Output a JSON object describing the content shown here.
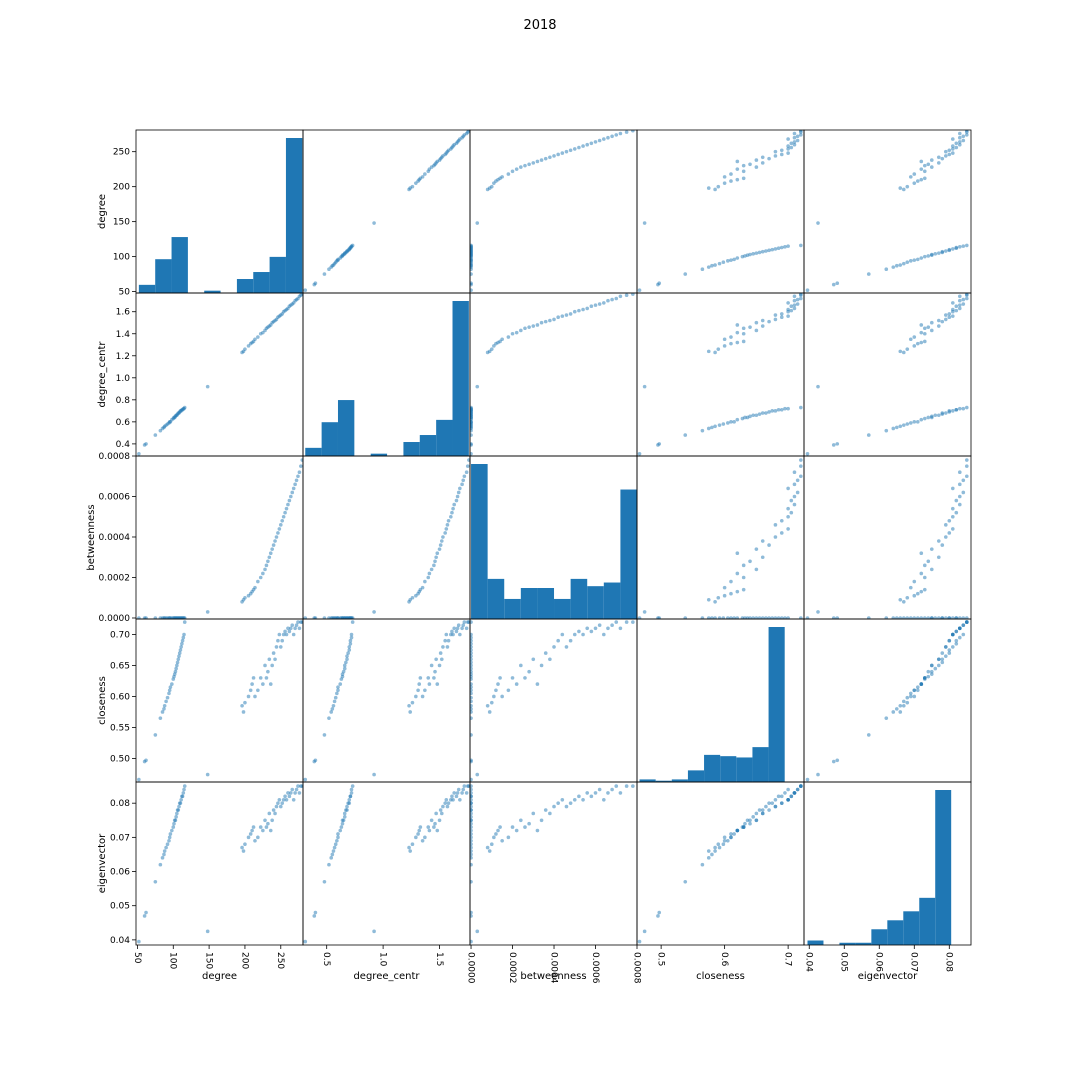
{
  "figure": {
    "title": "2018"
  },
  "chart_data": {
    "type": "scatter_matrix",
    "title": "2018",
    "variables": [
      "degree",
      "degree_centr",
      "betweenness",
      "closeness",
      "eigenvector"
    ],
    "ranges": {
      "degree": [
        48,
        281
      ],
      "degree_centr": [
        0.29,
        1.77
      ],
      "betweenness": [
        -5e-06,
        0.0008
      ],
      "closeness": [
        0.462,
        0.725
      ],
      "eigenvector": [
        0.0385,
        0.0862
      ]
    },
    "ticks": {
      "degree": [
        50,
        100,
        150,
        200,
        250
      ],
      "degree_centr": [
        0.4,
        0.6,
        0.8,
        1.0,
        1.2,
        1.4,
        1.6
      ],
      "betweenness": [
        0.0,
        0.0002,
        0.0004,
        0.0006,
        0.0008
      ],
      "closeness": [
        0.5,
        0.55,
        0.6,
        0.65,
        0.7
      ],
      "eigenvector": [
        0.04,
        0.05,
        0.06,
        0.07,
        0.08
      ]
    },
    "xtick_labels": {
      "degree": [
        "50",
        "100",
        "150",
        "200",
        "250"
      ],
      "degree_centr": [
        "0.5",
        "1.0",
        "1.5"
      ],
      "betweenness": [
        "0.0000",
        "0.0002",
        "0.0004",
        "0.0006",
        "0.0008"
      ],
      "closeness": [
        "0.5",
        "0.6",
        "0.7"
      ],
      "eigenvector": [
        "0.04",
        "0.05",
        "0.06",
        "0.07",
        "0.08"
      ]
    },
    "ytick_labels": {
      "degree": [
        "50",
        "100",
        "150",
        "200",
        "250"
      ],
      "degree_centr": [
        "0.4",
        "0.6",
        "0.8",
        "1.0",
        "1.2",
        "1.4",
        "1.6"
      ],
      "betweenness": [
        "0.0000",
        "0.0002",
        "0.0004",
        "0.0006",
        "0.0008"
      ],
      "closeness": [
        "0.50",
        "0.55",
        "0.60",
        "0.65",
        "0.70"
      ],
      "eigenvector": [
        "0.04",
        "0.05",
        "0.06",
        "0.07",
        "0.08"
      ]
    },
    "xtick_values": {
      "degree": [
        50,
        100,
        150,
        200,
        250
      ],
      "degree_centr": [
        0.5,
        1.0,
        1.5
      ],
      "betweenness": [
        0.0,
        0.0002,
        0.0004,
        0.0006,
        0.0008
      ],
      "closeness": [
        0.5,
        0.6,
        0.7
      ],
      "eigenvector": [
        0.04,
        0.05,
        0.06,
        0.07,
        0.08
      ]
    },
    "ytick_values": {
      "degree": [
        50,
        100,
        150,
        200,
        250
      ],
      "degree_centr": [
        0.4,
        0.6,
        0.8,
        1.0,
        1.2,
        1.4,
        1.6
      ],
      "betweenness": [
        0.0,
        0.0002,
        0.0004,
        0.0006,
        0.0008
      ],
      "closeness": [
        0.5,
        0.55,
        0.6,
        0.65,
        0.7
      ],
      "eigenvector": [
        0.04,
        0.05,
        0.06,
        0.07,
        0.08
      ]
    },
    "histograms": {
      "degree": {
        "bin_edges": [
          52,
          74.8,
          97.6,
          120.4,
          143.2,
          166,
          188.8,
          211.6,
          234.4,
          257.2,
          280
        ],
        "counts": [
          7,
          29,
          48,
          0,
          2,
          0,
          12,
          18,
          31,
          133
        ]
      },
      "degree_centr": {
        "bin_edges": [
          0.31,
          0.455,
          0.6,
          0.745,
          0.89,
          1.035,
          1.18,
          1.325,
          1.47,
          1.615,
          1.76
        ],
        "counts": [
          7,
          29,
          48,
          0,
          2,
          0,
          12,
          18,
          31,
          133
        ]
      },
      "betweenness": {
        "bin_edges": [
          0.0,
          8e-05,
          0.00016,
          0.00024,
          0.00032,
          0.0004,
          0.00048,
          0.00056,
          0.00064,
          0.00072,
          0.0008
        ],
        "counts": [
          85,
          22,
          11,
          17,
          17,
          11,
          22,
          18,
          20,
          71
        ]
      },
      "closeness": {
        "bin_edges": [
          0.466,
          0.4914,
          0.5168,
          0.5422,
          0.5676,
          0.593,
          0.6184,
          0.6438,
          0.6692,
          0.6946,
          0.72
        ],
        "counts": [
          2,
          1,
          2,
          9,
          21,
          20,
          19,
          27,
          120,
          0
        ]
      },
      "eigenvector": {
        "bin_edges": [
          0.0395,
          0.04406,
          0.04862,
          0.05318,
          0.05774,
          0.0623,
          0.06686,
          0.07142,
          0.07598,
          0.08054,
          0.0851
        ],
        "counts": [
          2,
          0,
          1,
          1,
          7,
          11,
          15,
          21,
          69,
          0
        ]
      }
    },
    "point_data": {
      "degree": [
        52,
        60,
        62,
        75,
        82,
        85,
        87,
        88,
        90,
        92,
        94,
        95,
        96,
        98,
        100,
        101,
        102,
        103,
        104,
        105,
        106,
        107,
        108,
        109,
        110,
        111,
        112,
        113,
        114,
        115,
        116,
        148,
        196,
        198,
        200,
        205,
        208,
        210,
        212,
        214,
        218,
        222,
        225,
        228,
        230,
        232,
        234,
        236,
        238,
        240,
        242,
        244,
        246,
        248,
        250,
        252,
        254,
        256,
        258,
        260,
        262,
        264,
        266,
        268,
        270,
        272,
        274,
        276,
        278,
        280
      ],
      "degree_centr": [
        0.31,
        0.39,
        0.4,
        0.48,
        0.52,
        0.54,
        0.55,
        0.56,
        0.57,
        0.58,
        0.59,
        0.6,
        0.6,
        0.62,
        0.63,
        0.64,
        0.64,
        0.65,
        0.66,
        0.66,
        0.67,
        0.68,
        0.68,
        0.69,
        0.7,
        0.7,
        0.71,
        0.71,
        0.72,
        0.72,
        0.73,
        0.92,
        1.23,
        1.24,
        1.26,
        1.29,
        1.31,
        1.32,
        1.33,
        1.35,
        1.37,
        1.4,
        1.41,
        1.43,
        1.45,
        1.46,
        1.47,
        1.48,
        1.5,
        1.51,
        1.52,
        1.53,
        1.55,
        1.56,
        1.57,
        1.58,
        1.6,
        1.61,
        1.62,
        1.63,
        1.65,
        1.66,
        1.67,
        1.68,
        1.7,
        1.71,
        1.72,
        1.74,
        1.75,
        1.76
      ],
      "betweenness": [
        0.0,
        0.0,
        0.0,
        0.0,
        0.0,
        0.0,
        0.0,
        0.0,
        0.0,
        0.0,
        0.0,
        0.0,
        0.0,
        0.0,
        0.0,
        0.0,
        0.0,
        0.0,
        0.0,
        0.0,
        0.0,
        0.0,
        0.0,
        0.0,
        0.0,
        0.0,
        0.0,
        0.0,
        0.0,
        0.0,
        0.0,
        3e-05,
        8e-05,
        9e-05,
        0.0001,
        0.00011,
        0.00012,
        0.00013,
        0.00014,
        0.00015,
        0.00018,
        0.0002,
        0.00022,
        0.00024,
        0.00026,
        0.00028,
        0.0003,
        0.00032,
        0.00034,
        0.00036,
        0.00038,
        0.0004,
        0.00042,
        0.00044,
        0.00046,
        0.00048,
        0.0005,
        0.00052,
        0.00054,
        0.00056,
        0.00058,
        0.0006,
        0.00062,
        0.00064,
        0.00066,
        0.00068,
        0.0007,
        0.00072,
        0.00075,
        0.00078
      ],
      "closeness": [
        0.466,
        0.495,
        0.497,
        0.538,
        0.565,
        0.575,
        0.58,
        0.585,
        0.592,
        0.598,
        0.605,
        0.61,
        0.615,
        0.62,
        0.628,
        0.632,
        0.636,
        0.64,
        0.645,
        0.65,
        0.655,
        0.66,
        0.665,
        0.67,
        0.675,
        0.68,
        0.685,
        0.69,
        0.695,
        0.7,
        0.72,
        0.474,
        0.585,
        0.575,
        0.59,
        0.6,
        0.61,
        0.62,
        0.63,
        0.6,
        0.61,
        0.63,
        0.62,
        0.65,
        0.63,
        0.64,
        0.66,
        0.62,
        0.65,
        0.67,
        0.66,
        0.68,
        0.69,
        0.7,
        0.68,
        0.69,
        0.7,
        0.705,
        0.7,
        0.71,
        0.705,
        0.71,
        0.715,
        0.7,
        0.71,
        0.715,
        0.72,
        0.71,
        0.72,
        0.72
      ],
      "eigenvector": [
        0.0395,
        0.047,
        0.048,
        0.057,
        0.062,
        0.064,
        0.065,
        0.066,
        0.067,
        0.068,
        0.069,
        0.07,
        0.071,
        0.072,
        0.073,
        0.074,
        0.075,
        0.075,
        0.076,
        0.077,
        0.078,
        0.078,
        0.079,
        0.08,
        0.08,
        0.081,
        0.082,
        0.082,
        0.083,
        0.084,
        0.085,
        0.0425,
        0.067,
        0.066,
        0.068,
        0.07,
        0.071,
        0.072,
        0.073,
        0.069,
        0.07,
        0.073,
        0.072,
        0.075,
        0.073,
        0.074,
        0.077,
        0.072,
        0.075,
        0.078,
        0.077,
        0.079,
        0.08,
        0.081,
        0.079,
        0.08,
        0.081,
        0.082,
        0.081,
        0.083,
        0.082,
        0.083,
        0.084,
        0.081,
        0.083,
        0.084,
        0.085,
        0.083,
        0.085,
        0.085
      ]
    },
    "grid": false,
    "colors": {
      "points": "#1f77b4",
      "bars": "#1f77b4"
    }
  }
}
